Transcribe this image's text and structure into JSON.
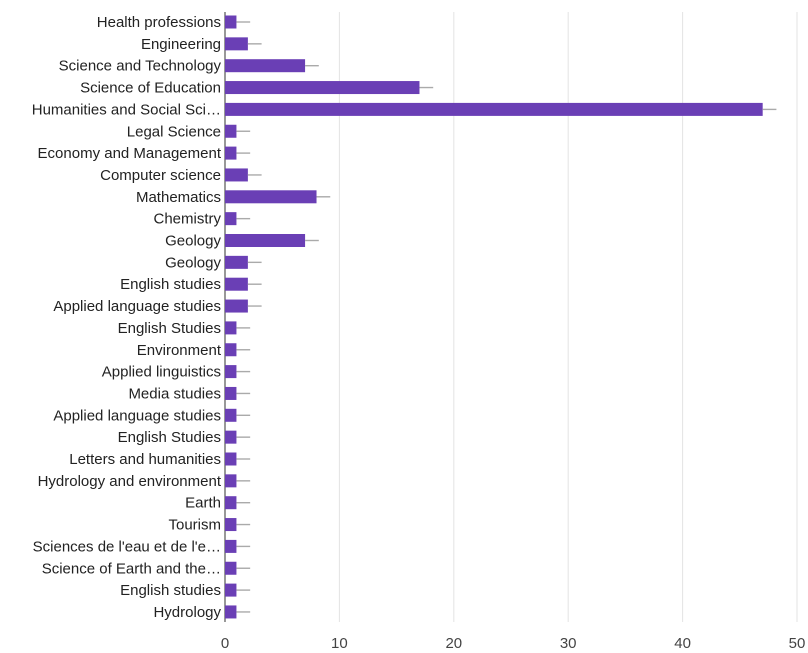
{
  "chart_data": {
    "type": "bar",
    "orientation": "horizontal",
    "title": "",
    "xlabel": "",
    "ylabel": "",
    "categories": [
      "Health professions",
      "Engineering",
      "Science and Technology",
      "Science of Education",
      "Humanities and Social Sci…",
      "Legal Science",
      "Economy and Management",
      "Computer science",
      "Mathematics",
      "Chemistry",
      "Geology",
      "Geology",
      "English studies",
      "Applied language studies",
      "English Studies",
      "Environment",
      "Applied linguistics",
      "Media studies",
      "Applied language studies",
      "English Studies",
      "Letters and humanities",
      "Hydrology and environment",
      "Earth",
      "Tourism",
      "Sciences de l'eau et de l'e…",
      "Science of Earth and the…",
      "English studies",
      "Hydrology"
    ],
    "values": [
      1,
      2,
      7,
      17,
      47,
      1,
      1,
      2,
      8,
      1,
      7,
      2,
      2,
      2,
      1,
      1,
      1,
      1,
      1,
      1,
      1,
      1,
      1,
      1,
      1,
      1,
      1,
      1
    ],
    "xlim": [
      0,
      50
    ],
    "xticks": [
      0,
      10,
      20,
      30,
      40,
      50
    ],
    "grid": "vertical",
    "legend": "none",
    "bar_color": "#6a3fb5",
    "error_bar_color": "#aaaaaa"
  }
}
